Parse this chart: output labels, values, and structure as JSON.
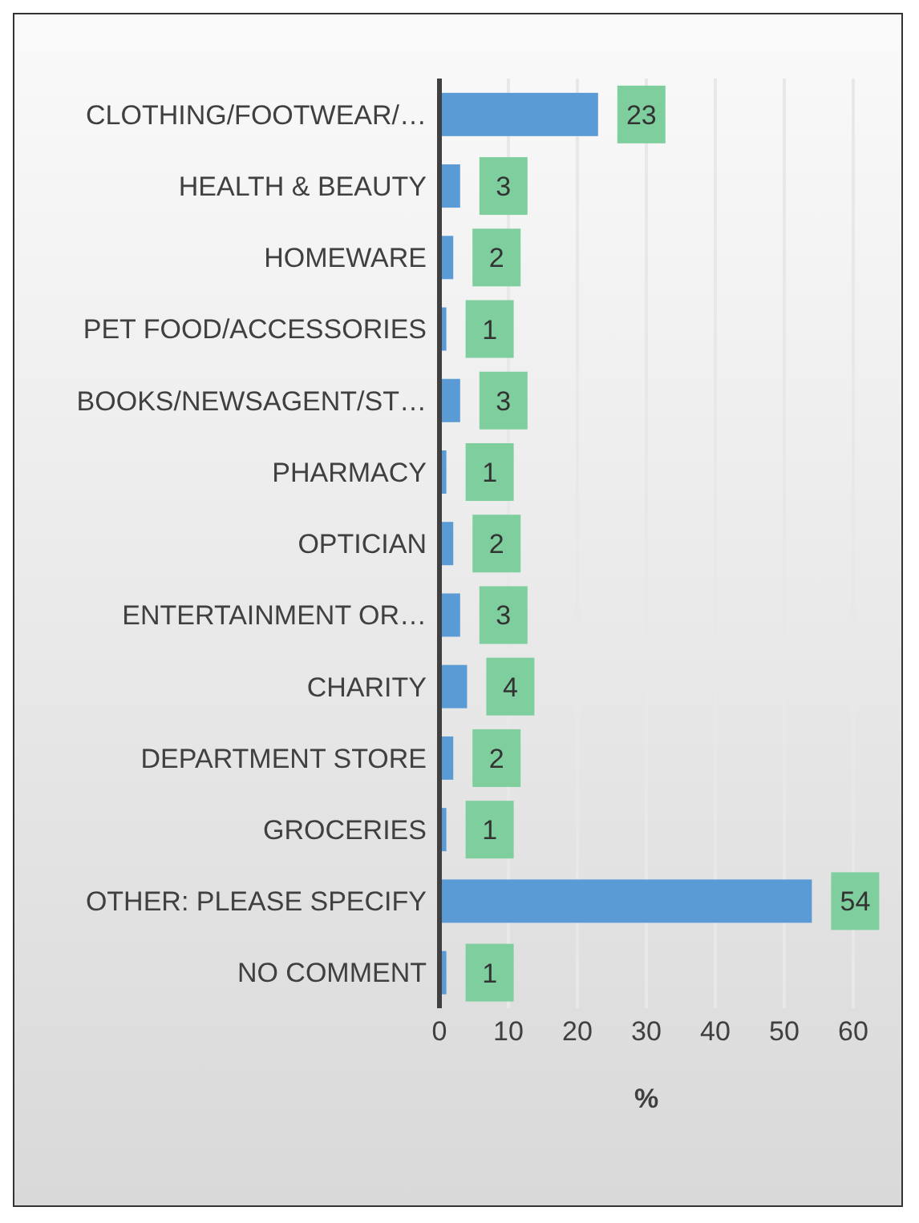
{
  "chart_data": {
    "type": "bar",
    "orientation": "horizontal",
    "xlabel": "%",
    "categories": [
      "CLOTHING/FOOTWEAR/…",
      "HEALTH & BEAUTY",
      "HOMEWARE",
      "PET FOOD/ACCESSORIES",
      "BOOKS/NEWSAGENT/ST…",
      "PHARMACY",
      "OPTICIAN",
      "ENTERTAINMENT OR…",
      "CHARITY",
      "DEPARTMENT STORE",
      "GROCERIES",
      "OTHER: PLEASE SPECIFY",
      "NO COMMENT"
    ],
    "values": [
      23,
      3,
      2,
      1,
      3,
      1,
      2,
      3,
      4,
      2,
      1,
      54,
      1
    ],
    "color": "#5b9bd5",
    "xlim": [
      0,
      60
    ],
    "xticks": [
      0,
      10,
      20,
      30,
      40,
      50,
      60
    ],
    "grid": "x",
    "data_labels": true
  }
}
